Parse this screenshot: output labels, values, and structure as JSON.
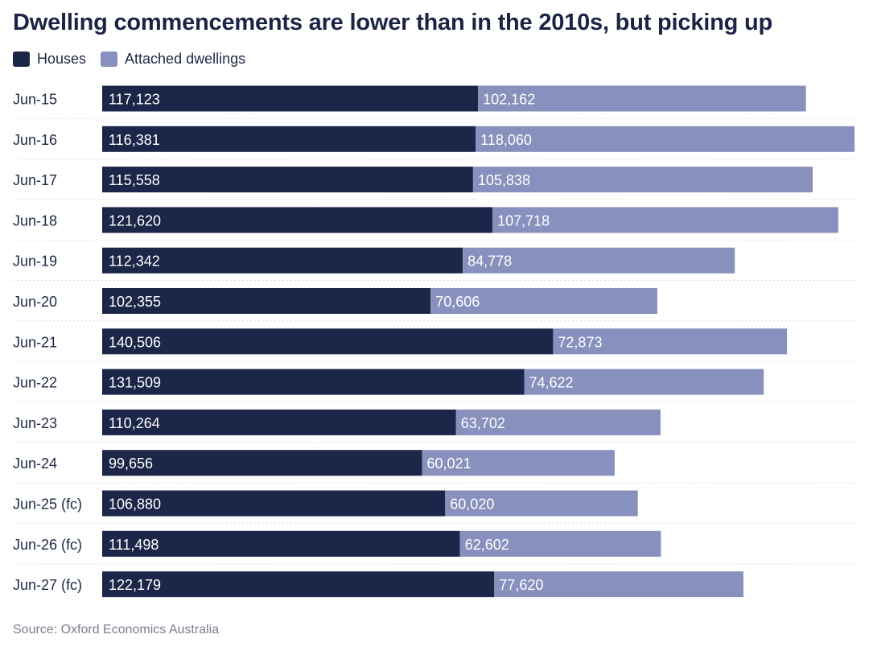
{
  "title": "Dwelling commencements are lower than in the 2010s, but picking up",
  "source": "Source: Oxford Economics Australia",
  "colors": {
    "houses": "#1c2648",
    "attached": "#8890bd",
    "text": "#1d2747",
    "source": "#7b7f8c",
    "separator": "#dcdde3"
  },
  "chart_data": {
    "type": "bar",
    "orientation": "horizontal",
    "stacked": true,
    "title": "Dwelling commencements are lower than in the 2010s, but picking up",
    "legend_position": "top-left",
    "grid": false,
    "categories": [
      "Jun-15",
      "Jun-16",
      "Jun-17",
      "Jun-18",
      "Jun-19",
      "Jun-20",
      "Jun-21",
      "Jun-22",
      "Jun-23",
      "Jun-24",
      "Jun-25 (fc)",
      "Jun-26 (fc)",
      "Jun-27 (fc)"
    ],
    "series": [
      {
        "name": "Houses",
        "values": [
          117123,
          116381,
          115558,
          121620,
          112342,
          102355,
          140506,
          131509,
          110264,
          99656,
          106880,
          111498,
          122179
        ],
        "labels": [
          "117,123",
          "116,381",
          "115,558",
          "121,620",
          "112,342",
          "102,355",
          "140,506",
          "131,509",
          "110,264",
          "99,656",
          "106,880",
          "111,498",
          "122,179"
        ]
      },
      {
        "name": "Attached dwellings",
        "values": [
          102162,
          118060,
          105838,
          107718,
          84778,
          70606,
          72873,
          74622,
          63702,
          60021,
          60020,
          62602,
          77620
        ],
        "labels": [
          "102,162",
          "118,060",
          "105,838",
          "107,718",
          "84,778",
          "70,606",
          "72,873",
          "74,622",
          "63,702",
          "60,021",
          "60,020",
          "62,602",
          "77,620"
        ]
      }
    ]
  }
}
